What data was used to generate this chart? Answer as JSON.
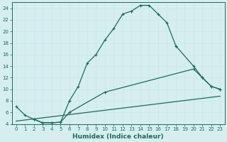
{
  "xlabel": "Humidex (Indice chaleur)",
  "bg_color": "#d6eef0",
  "grid_color": "#b8dde0",
  "line_color": "#1a6b5a",
  "xlim": [
    -0.5,
    23.5
  ],
  "ylim": [
    4,
    25
  ],
  "yticks": [
    4,
    6,
    8,
    10,
    12,
    14,
    16,
    18,
    20,
    22,
    24
  ],
  "xticks": [
    0,
    1,
    2,
    3,
    4,
    5,
    6,
    7,
    8,
    9,
    10,
    11,
    12,
    13,
    14,
    15,
    16,
    17,
    18,
    19,
    20,
    21,
    22,
    23
  ],
  "series1_x": [
    0,
    1,
    2,
    3,
    4,
    5,
    6,
    7,
    8,
    9,
    10,
    11,
    12,
    13,
    14,
    15,
    16,
    17,
    18
  ],
  "series1_y": [
    7,
    5.5,
    4.8,
    4.2,
    4.2,
    4.3,
    8.0,
    10.5,
    14.5,
    16.0,
    18.5,
    20.5,
    23.0,
    23.5,
    24.5,
    24.5,
    23.0,
    21.5,
    17.5
  ],
  "series2_x": [
    18,
    20,
    21,
    22,
    23
  ],
  "series2_y": [
    17.5,
    14.0,
    12.0,
    10.5,
    10.0
  ],
  "series3_x": [
    2,
    3,
    4,
    5,
    6,
    10,
    20,
    21,
    22,
    23
  ],
  "series3_y": [
    4.8,
    4.2,
    4.2,
    4.3,
    6.0,
    9.5,
    13.5,
    12.0,
    10.5,
    10.0
  ],
  "series4_x": [
    0,
    23
  ],
  "series4_y": [
    4.5,
    8.8
  ],
  "font_size": 6.5
}
